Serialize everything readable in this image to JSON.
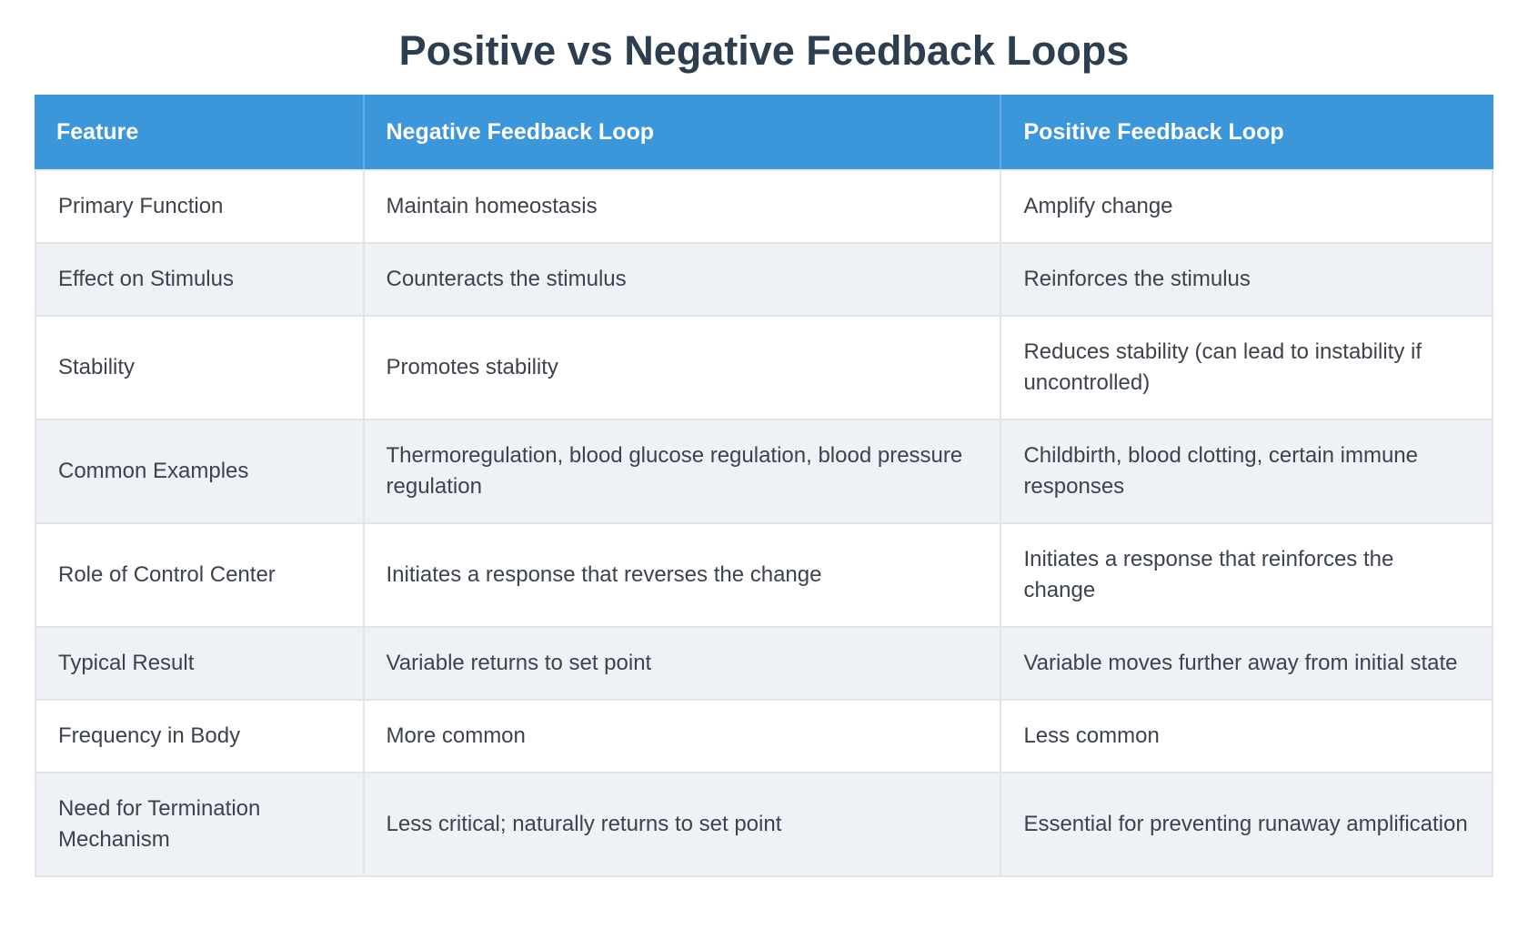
{
  "title": "Positive vs Negative Feedback Loops",
  "table": {
    "headers": [
      "Feature",
      "Negative Feedback Loop",
      "Positive Feedback Loop"
    ],
    "rows": [
      {
        "feature": "Primary Function",
        "negative": "Maintain homeostasis",
        "positive": "Amplify change"
      },
      {
        "feature": "Effect on Stimulus",
        "negative": "Counteracts the stimulus",
        "positive": "Reinforces the stimulus"
      },
      {
        "feature": "Stability",
        "negative": "Promotes stability",
        "positive": "Reduces stability (can lead to instability if uncontrolled)"
      },
      {
        "feature": "Common Examples",
        "negative": "Thermoregulation, blood glucose regulation, blood pressure regulation",
        "positive": "Childbirth, blood clotting, certain immune responses"
      },
      {
        "feature": "Role of Control Center",
        "negative": "Initiates a response that reverses the change",
        "positive": "Initiates a response that reinforces the change"
      },
      {
        "feature": "Typical Result",
        "negative": "Variable returns to set point",
        "positive": "Variable moves further away from initial state"
      },
      {
        "feature": "Frequency in Body",
        "negative": "More common",
        "positive": "Less common"
      },
      {
        "feature": "Need for Termination Mechanism",
        "negative": "Less critical; naturally returns to set point",
        "positive": "Essential for preventing runaway amplification"
      }
    ]
  },
  "colors": {
    "header_bg": "#3b97da",
    "header_text": "#ffffff",
    "header_divider": "#66abe1",
    "title_text": "#2c3e50",
    "body_text": "#3c434b",
    "row_bg": "#ffffff",
    "row_alt_bg": "#eef2f7",
    "border": "#e2e4e7"
  }
}
